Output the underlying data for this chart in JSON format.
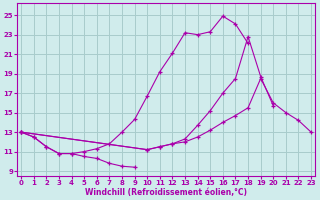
{
  "xlabel": "Windchill (Refroidissement éolien,°C)",
  "background_color": "#d0ecec",
  "grid_color": "#a8cccc",
  "line_color": "#aa00aa",
  "x_ticks": [
    0,
    1,
    2,
    3,
    4,
    5,
    6,
    7,
    8,
    9,
    10,
    11,
    12,
    13,
    14,
    15,
    16,
    17,
    18,
    19,
    20,
    21,
    22,
    23
  ],
  "y_ticks": [
    9,
    11,
    13,
    15,
    17,
    19,
    21,
    23,
    25
  ],
  "xlim": [
    -0.3,
    23.3
  ],
  "ylim": [
    8.5,
    26.2
  ],
  "series": [
    {
      "x": [
        0,
        1,
        2,
        3,
        4,
        5,
        6,
        7,
        8,
        9
      ],
      "y": [
        13.0,
        12.5,
        11.5,
        10.8,
        10.8,
        10.5,
        10.3,
        9.8,
        9.5,
        9.4
      ]
    },
    {
      "x": [
        0,
        1,
        2,
        3,
        4,
        5,
        6,
        7,
        8,
        9,
        10,
        11,
        12,
        13,
        14,
        15,
        16,
        17,
        18
      ],
      "y": [
        13.0,
        12.5,
        11.5,
        10.8,
        10.8,
        11.0,
        11.3,
        11.8,
        13.0,
        14.3,
        16.7,
        19.2,
        21.1,
        23.2,
        23.0,
        23.3,
        24.9,
        24.1,
        22.1
      ]
    },
    {
      "x": [
        0,
        10,
        11,
        12,
        13,
        14,
        15,
        16,
        17,
        18,
        19,
        20,
        21,
        22,
        23
      ],
      "y": [
        13.0,
        11.2,
        11.5,
        11.8,
        12.0,
        12.5,
        13.2,
        14.0,
        14.7,
        15.5,
        18.5,
        16.0,
        15.0,
        14.2,
        13.0
      ]
    },
    {
      "x": [
        0,
        10,
        11,
        12,
        13,
        14,
        15,
        16,
        17,
        18,
        19,
        20,
        21,
        22,
        23
      ],
      "y": [
        13.0,
        11.2,
        11.5,
        11.8,
        12.3,
        13.7,
        15.2,
        17.0,
        18.5,
        22.8,
        18.7,
        15.7,
        null,
        null,
        null
      ]
    }
  ]
}
